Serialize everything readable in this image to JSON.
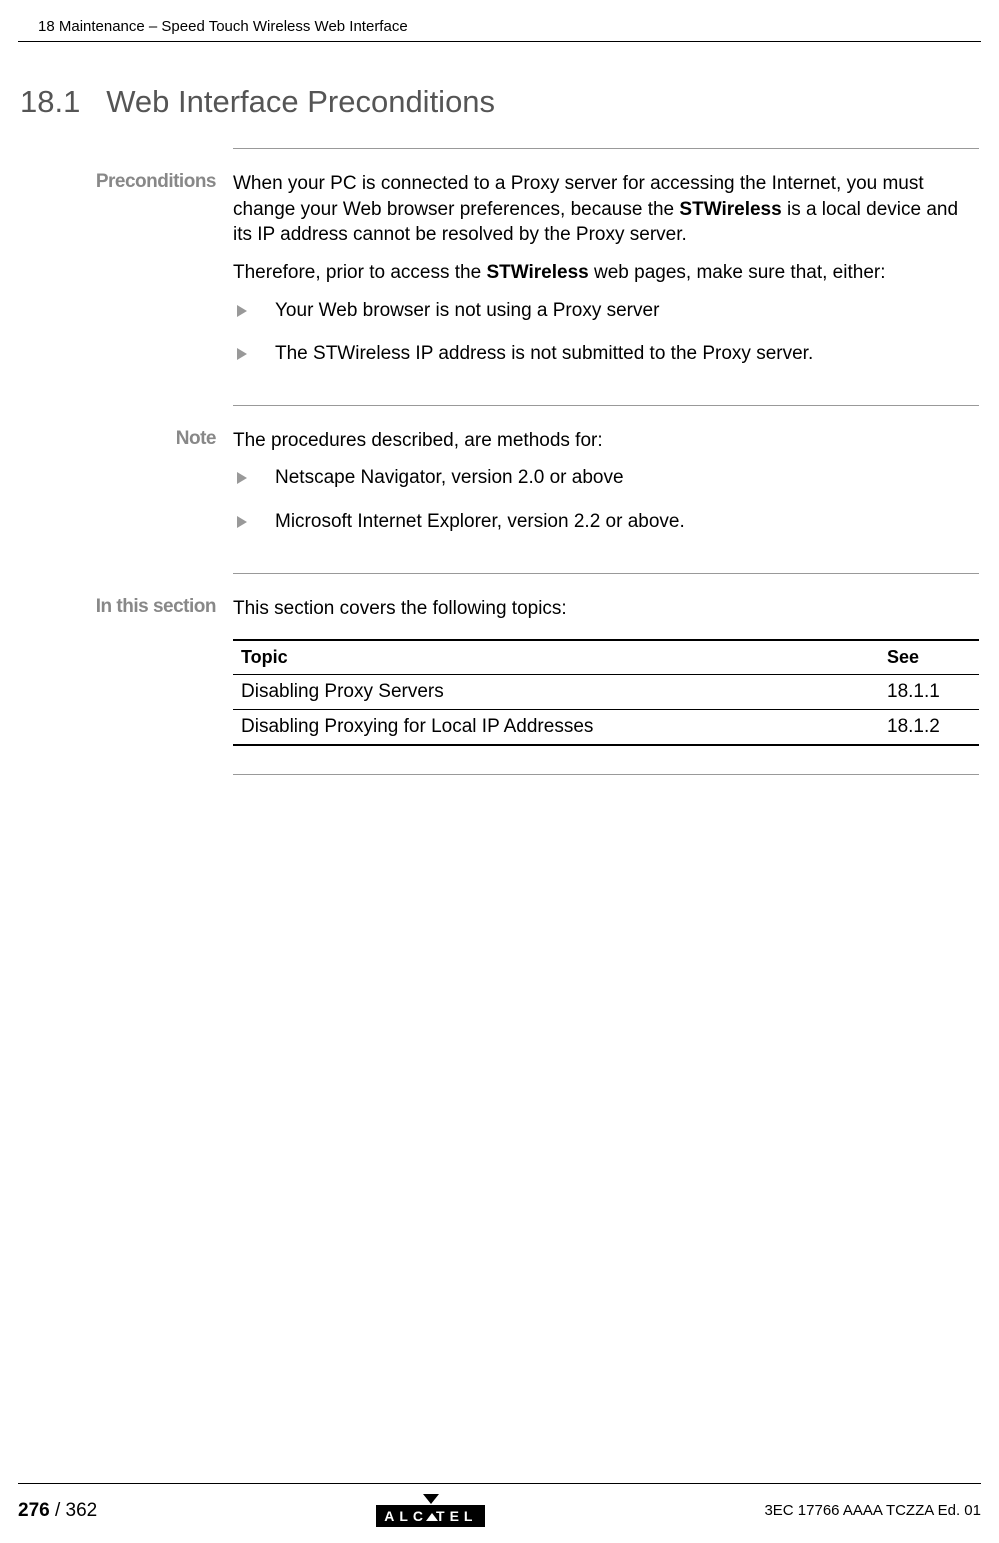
{
  "header": {
    "chapter_line": "18 Maintenance – Speed Touch Wireless Web Interface"
  },
  "heading": {
    "number": "18.1",
    "title": "Web Interface Preconditions"
  },
  "sections": {
    "preconditions": {
      "label": "Preconditions",
      "para1_part1": "When your PC is connected to a Proxy server for accessing the Internet, you must change your Web browser preferences, because the ",
      "para1_bold1": "STWireless",
      "para1_part2": " is a local device and its IP address cannot be resolved by the Proxy server.",
      "para2_part1": "Therefore, prior to access the ",
      "para2_bold1": "STWireless",
      "para2_part2": " web pages, make sure that, either:",
      "bullets": [
        {
          "text": "Your Web browser is not using a Proxy server"
        },
        {
          "part1": "The ",
          "bold": "STWireless",
          "part2": " IP address is not submitted to the Proxy server."
        }
      ]
    },
    "note": {
      "label": "Note",
      "intro": "The procedures described, are methods for:",
      "bullets": [
        "Netscape Navigator, version 2.0 or above",
        "Microsoft Internet Explorer, version 2.2 or above."
      ]
    },
    "in_this_section": {
      "label": "In this section",
      "intro": "This section covers the following topics:",
      "table": {
        "columns": [
          "Topic",
          "See"
        ],
        "rows": [
          [
            "Disabling Proxy Servers",
            "18.1.1"
          ],
          [
            "Disabling Proxying for Local IP Addresses",
            "18.1.2"
          ]
        ]
      }
    }
  },
  "footer": {
    "page_current": "276",
    "page_total": " / 362",
    "logo_text_1": "ALC",
    "logo_text_2": "TEL",
    "doc_ref": "3EC 17766 AAAA TCZZA Ed. 01"
  }
}
